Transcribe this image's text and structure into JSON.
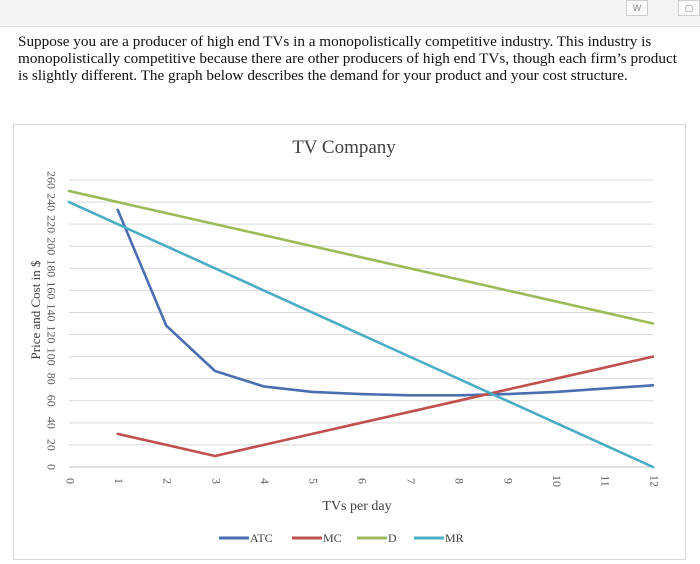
{
  "question_text": "Suppose you are a producer of high end TVs in a monopolistically competitive industry.  This industry is monopolistically competitive because there are other producers of high end TVs, though each firm’s product is slightly different. The graph below describes the demand for your product and your cost structure.",
  "chart_data": {
    "type": "line",
    "title": "TV Company",
    "xlabel": "TVs per day",
    "ylabel": "Price and Cost in $",
    "x": [
      0,
      1,
      2,
      3,
      4,
      5,
      6,
      7,
      8,
      9,
      10,
      11,
      12
    ],
    "xlim": [
      0,
      12
    ],
    "ylim": [
      0,
      260
    ],
    "yticks": [
      0,
      20,
      40,
      60,
      80,
      100,
      120,
      140,
      160,
      180,
      200,
      220,
      240,
      260
    ],
    "grid": true,
    "legend_position": "bottom",
    "series": [
      {
        "name": "ATC",
        "color": "#4a6eb0",
        "x": [
          1,
          2,
          3,
          4,
          5,
          6,
          7,
          8,
          9,
          10,
          11,
          12
        ],
        "values": [
          233,
          128,
          87,
          73,
          68,
          66,
          65,
          65,
          66,
          68,
          71,
          74
        ]
      },
      {
        "name": "MC",
        "color": "#c0504d",
        "x": [
          1,
          2,
          3,
          4,
          5,
          6,
          7,
          8,
          9,
          10,
          11,
          12
        ],
        "values": [
          30,
          20,
          10,
          20,
          30,
          40,
          50,
          60,
          70,
          80,
          90,
          100
        ]
      },
      {
        "name": "D",
        "color": "#9bbb59",
        "x": [
          0,
          12
        ],
        "values": [
          250,
          130
        ]
      },
      {
        "name": "MR",
        "color": "#4bacc6",
        "x": [
          0,
          12
        ],
        "values": [
          240,
          0
        ]
      }
    ]
  }
}
